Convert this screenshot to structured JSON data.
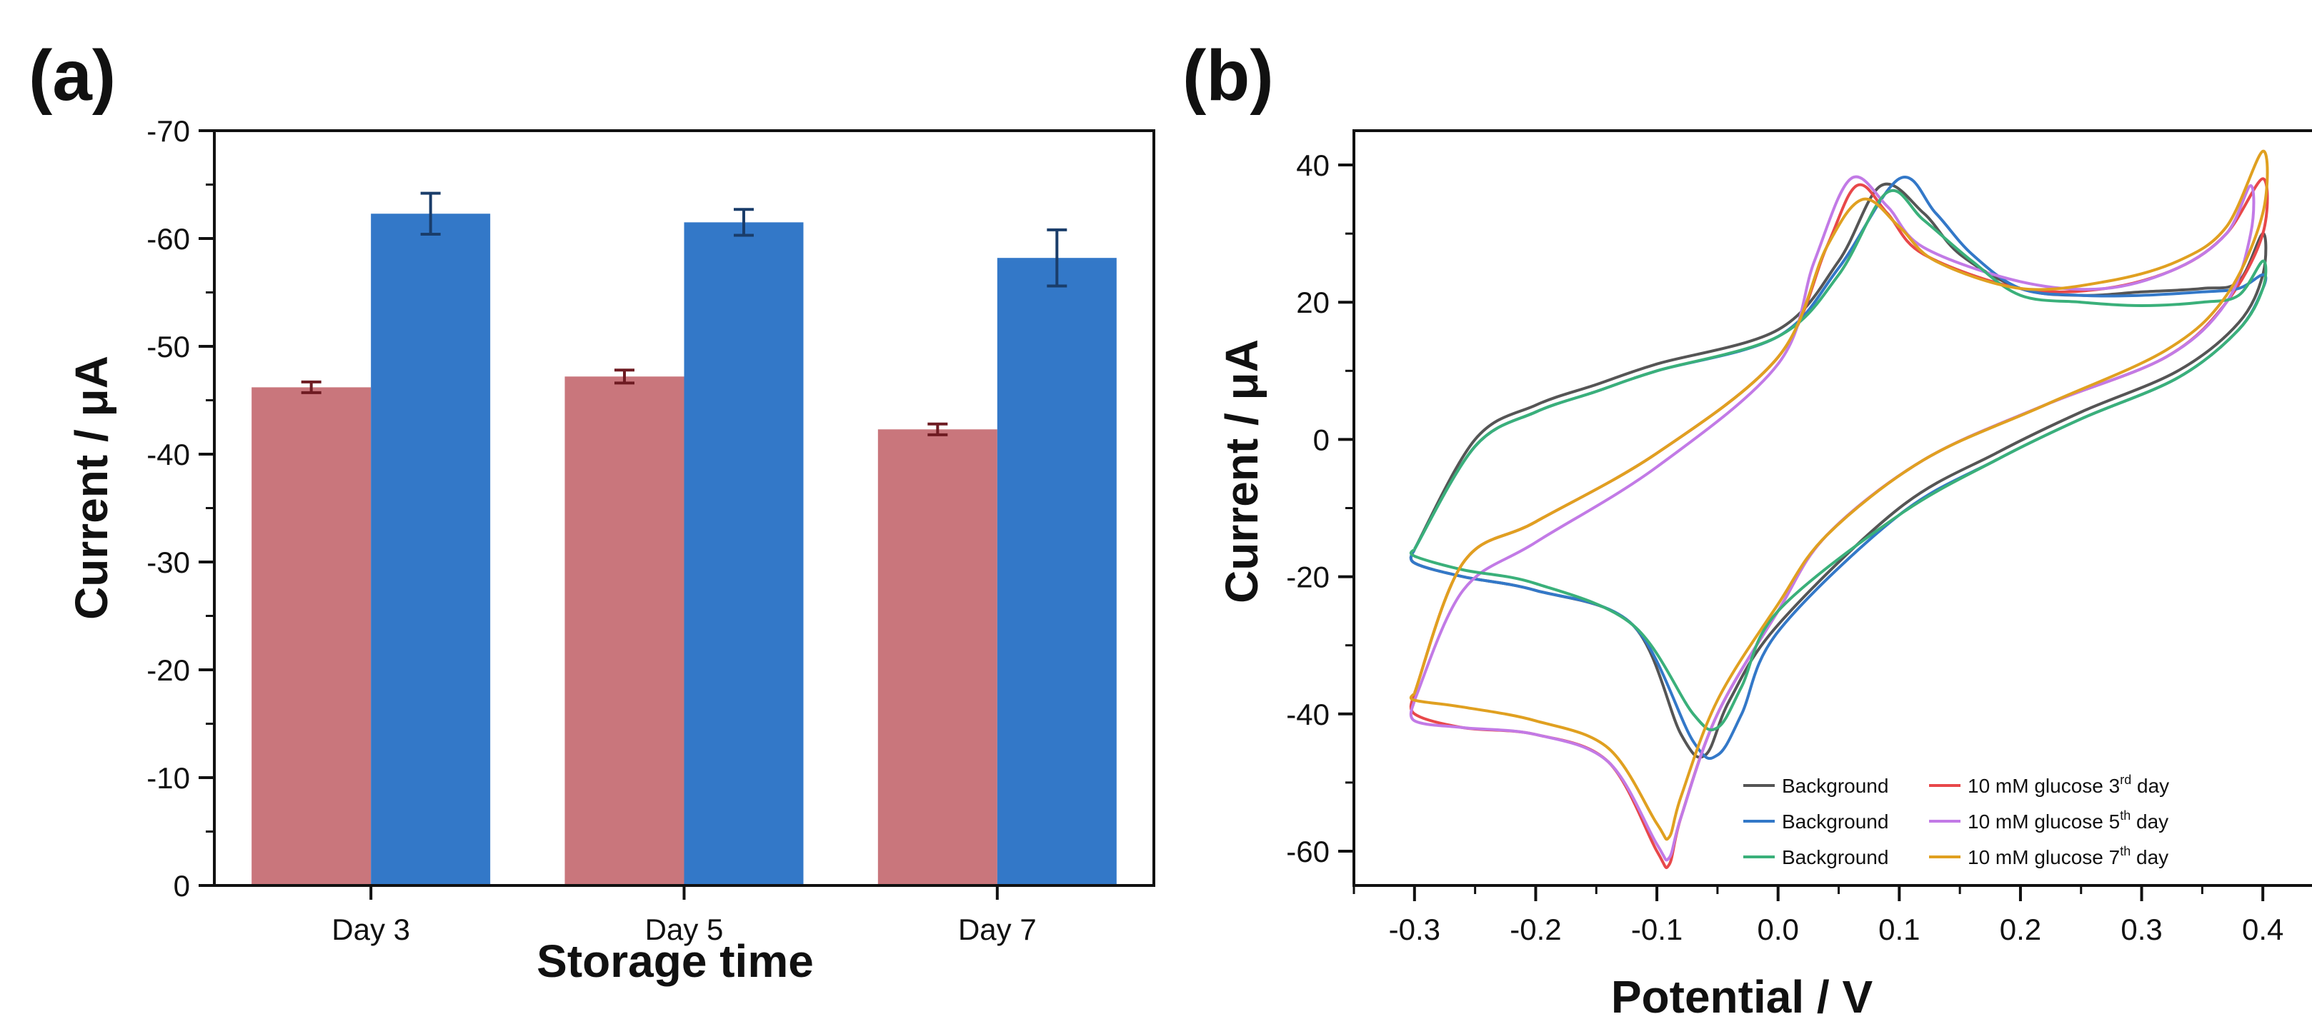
{
  "chart_data": [
    {
      "panel": "(a)",
      "type": "bar",
      "title": "",
      "xlabel": "Storage time",
      "ylabel": "Current / μA",
      "ylim": [
        0,
        -70
      ],
      "ytick_labels": [
        "0",
        "-10",
        "-20",
        "-30",
        "-40",
        "-50",
        "-60",
        "-70"
      ],
      "ytick_values": [
        0,
        -10,
        -20,
        -30,
        -40,
        -50,
        -60,
        -70
      ],
      "categories": [
        "Day 3",
        "Day 5",
        "Day 7"
      ],
      "series": [
        {
          "name": "Background",
          "color": "#c9767c",
          "values": [
            -46.2,
            -47.2,
            -42.3
          ],
          "errors": [
            0.5,
            0.6,
            0.5
          ]
        },
        {
          "name": "10 mM glucose",
          "color": "#3378c8",
          "values": [
            -62.3,
            -61.5,
            -58.2
          ],
          "errors": [
            1.9,
            1.2,
            2.6
          ]
        }
      ]
    },
    {
      "panel": "(b)",
      "type": "line",
      "title": "",
      "xlabel": "Potential / V",
      "ylabel": "Current / μA",
      "xlim": [
        -0.35,
        0.45
      ],
      "ylim": [
        -65,
        45
      ],
      "xtick_labels": [
        "-0.3",
        "-0.2",
        "-0.1",
        "0.0",
        "0.1",
        "0.2",
        "0.3",
        "0.4"
      ],
      "xtick_values": [
        -0.3,
        -0.2,
        -0.1,
        0.0,
        0.1,
        0.2,
        0.3,
        0.4
      ],
      "ytick_labels": [
        "40",
        "20",
        "0",
        "-20",
        "-40",
        "-60"
      ],
      "ytick_values": [
        40,
        20,
        0,
        -20,
        -40,
        -60
      ],
      "legend_position": "bottom-right",
      "series": [
        {
          "label": "Background",
          "sup": "",
          "label_suffix": "",
          "color": "#555555",
          "x": [
            -0.3,
            -0.25,
            -0.2,
            -0.15,
            -0.1,
            0.0,
            0.05,
            0.085,
            0.12,
            0.15,
            0.2,
            0.25,
            0.3,
            0.35,
            0.38,
            0.4,
            0.4,
            0.38,
            0.33,
            0.25,
            0.18,
            0.1,
            0.0,
            -0.04,
            -0.06,
            -0.08,
            -0.12,
            -0.2,
            -0.26,
            -0.3,
            -0.3
          ],
          "y": [
            -16,
            0,
            5,
            8,
            11,
            16,
            26,
            37,
            33,
            27,
            22,
            21,
            21.5,
            22,
            23,
            30,
            24,
            17,
            10,
            4,
            -2,
            -10,
            -27,
            -38,
            -46,
            -43,
            -27,
            -22,
            -20,
            -18,
            -16
          ]
        },
        {
          "label": "10 mM glucose 3",
          "sup": "rd",
          "label_suffix": " day",
          "color": "#e8484a",
          "x": [
            -0.3,
            -0.26,
            -0.2,
            -0.1,
            0.0,
            0.04,
            0.065,
            0.09,
            0.12,
            0.2,
            0.27,
            0.33,
            0.37,
            0.4,
            0.4,
            0.37,
            0.32,
            0.22,
            0.12,
            0.04,
            0.0,
            -0.05,
            -0.08,
            -0.09,
            -0.1,
            -0.14,
            -0.2,
            -0.26,
            -0.3,
            -0.3
          ],
          "y": [
            -37,
            -18,
            -12,
            -2,
            12,
            28,
            37,
            33,
            27,
            22,
            22,
            25,
            30,
            38,
            30,
            20,
            12,
            5,
            -3,
            -14,
            -25,
            -40,
            -55,
            -62,
            -60,
            -47,
            -43,
            -42,
            -40,
            -37
          ]
        },
        {
          "label": "Background",
          "sup": "",
          "label_suffix": "",
          "color": "#3378c8",
          "x": [
            -0.3,
            -0.25,
            -0.2,
            -0.15,
            -0.1,
            0.0,
            0.05,
            0.1,
            0.13,
            0.16,
            0.2,
            0.25,
            0.3,
            0.35,
            0.38,
            0.4,
            0.4,
            0.38,
            0.33,
            0.25,
            0.18,
            0.1,
            0.0,
            -0.03,
            -0.05,
            -0.07,
            -0.12,
            -0.2,
            -0.26,
            -0.3,
            -0.3
          ],
          "y": [
            -16,
            -1,
            4,
            7,
            10,
            15,
            25,
            38,
            33,
            27,
            22,
            21,
            21,
            21.5,
            22,
            24,
            22,
            16,
            9,
            3,
            -3,
            -11,
            -28,
            -40,
            -46,
            -44,
            -27,
            -22,
            -20,
            -18,
            -16
          ]
        },
        {
          "label": "10 mM glucose 5",
          "sup": "th",
          "label_suffix": " day",
          "color": "#c27ae6",
          "x": [
            -0.3,
            -0.26,
            -0.2,
            -0.1,
            0.0,
            0.03,
            0.06,
            0.09,
            0.12,
            0.2,
            0.27,
            0.33,
            0.37,
            0.39,
            0.39,
            0.37,
            0.32,
            0.22,
            0.12,
            0.04,
            0.0,
            -0.05,
            -0.08,
            -0.09,
            -0.1,
            -0.14,
            -0.2,
            -0.26,
            -0.3,
            -0.3
          ],
          "y": [
            -38,
            -22,
            -15,
            -4,
            11,
            26,
            38,
            34,
            28,
            23,
            22,
            25,
            30,
            37,
            30,
            20,
            12,
            5,
            -3,
            -14,
            -25,
            -40,
            -55,
            -61,
            -59,
            -47,
            -43,
            -42,
            -41,
            -38
          ]
        },
        {
          "label": "Background",
          "sup": "",
          "label_suffix": "",
          "color": "#3ab07a",
          "x": [
            -0.3,
            -0.25,
            -0.2,
            -0.15,
            -0.1,
            0.0,
            0.05,
            0.09,
            0.12,
            0.16,
            0.2,
            0.25,
            0.3,
            0.35,
            0.38,
            0.4,
            0.4,
            0.38,
            0.33,
            0.25,
            0.18,
            0.1,
            0.0,
            -0.03,
            -0.05,
            -0.07,
            -0.12,
            -0.2,
            -0.26,
            -0.3,
            -0.3
          ],
          "y": [
            -16,
            -1,
            4,
            7,
            10,
            15,
            24,
            36,
            32,
            26,
            21,
            20,
            19.5,
            20,
            21,
            26,
            22,
            16,
            9,
            3,
            -3,
            -11,
            -25,
            -36,
            -42,
            -40,
            -27,
            -21,
            -19,
            -17,
            -16
          ]
        },
        {
          "label": "10 mM glucose 7",
          "sup": "th",
          "label_suffix": " day",
          "color": "#e0a020",
          "x": [
            -0.3,
            -0.26,
            -0.2,
            -0.1,
            0.0,
            0.04,
            0.07,
            0.1,
            0.13,
            0.2,
            0.27,
            0.33,
            0.37,
            0.4,
            0.4,
            0.37,
            0.32,
            0.22,
            0.12,
            0.04,
            0.0,
            -0.05,
            -0.08,
            -0.09,
            -0.1,
            -0.14,
            -0.2,
            -0.26,
            -0.3,
            -0.3
          ],
          "y": [
            -37,
            -18,
            -12,
            -2,
            12,
            28,
            35,
            31,
            26,
            22,
            23,
            26,
            31,
            42,
            33,
            21,
            13,
            5,
            -3,
            -14,
            -24,
            -38,
            -52,
            -58,
            -56,
            -45,
            -41,
            -39,
            -38,
            -37
          ]
        }
      ]
    }
  ]
}
